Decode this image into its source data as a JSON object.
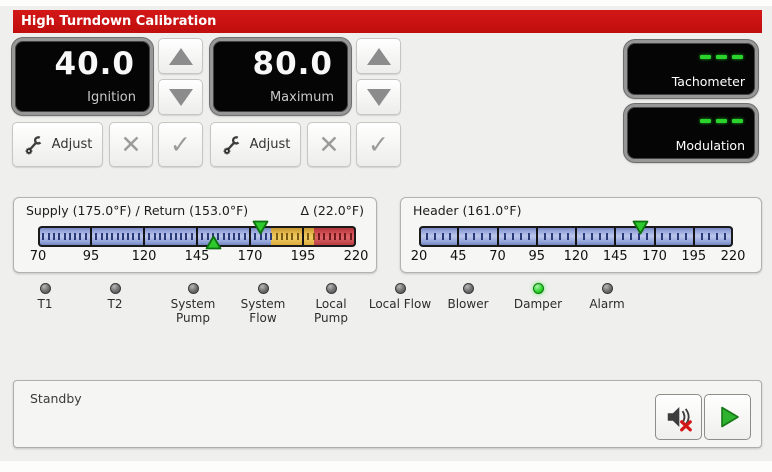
{
  "window": {
    "title": "High Turndown Calibration"
  },
  "setpoints": [
    {
      "value": "40.0",
      "label": "Ignition",
      "adjust": "Adjust"
    },
    {
      "value": "80.0",
      "label": "Maximum",
      "adjust": "Adjust"
    }
  ],
  "icons": {
    "cancel": "✕",
    "confirm": "✓"
  },
  "readouts": [
    {
      "label": "Tachometer",
      "value": "---"
    },
    {
      "label": "Modulation",
      "value": "---"
    }
  ],
  "gauges": [
    {
      "title": "Supply (175.0°F) / Return (153.0°F)",
      "delta": "Δ (22.0°F)",
      "min": 70,
      "max": 220,
      "major_ticks": [
        70,
        95,
        120,
        145,
        170,
        195,
        220
      ],
      "minor_step": 2.5,
      "segments": [
        {
          "from": 70,
          "to": 180,
          "color": "blue"
        },
        {
          "from": 180,
          "to": 200,
          "color": "amber"
        },
        {
          "from": 200,
          "to": 220,
          "color": "red"
        }
      ],
      "pointers": [
        {
          "name": "supply",
          "value": 175.0,
          "direction": "down"
        },
        {
          "name": "return",
          "value": 153.0,
          "direction": "up"
        }
      ]
    },
    {
      "title": "Header (161.0°F)",
      "delta": "",
      "min": 20,
      "max": 220,
      "major_ticks": [
        20,
        45,
        70,
        95,
        120,
        145,
        170,
        195,
        220
      ],
      "minor_step": 5,
      "segments": [
        {
          "from": 20,
          "to": 220,
          "color": "blue"
        }
      ],
      "pointers": [
        {
          "name": "header",
          "value": 161.0,
          "direction": "down"
        }
      ]
    }
  ],
  "leds": [
    {
      "label": "T1",
      "on": false
    },
    {
      "label": "T2",
      "on": false
    },
    {
      "label": "System Pump",
      "on": false
    },
    {
      "label": "System Flow",
      "on": false
    },
    {
      "label": "Local Pump",
      "on": false
    },
    {
      "label": "Local Flow",
      "on": false
    },
    {
      "label": "Blower",
      "on": false
    },
    {
      "label": "Damper",
      "on": true
    },
    {
      "label": "Alarm",
      "on": false
    }
  ],
  "status": {
    "message": "Standby"
  },
  "colors": {
    "titlebar_red": "#cc1212",
    "led_on_green": "#2ecc2e",
    "pointer_green": "#2ec92e",
    "scale_blue": "#93a2d8",
    "scale_amber": "#e5b94e",
    "scale_red": "#d6555a",
    "dash_green": "#2bd42b"
  }
}
